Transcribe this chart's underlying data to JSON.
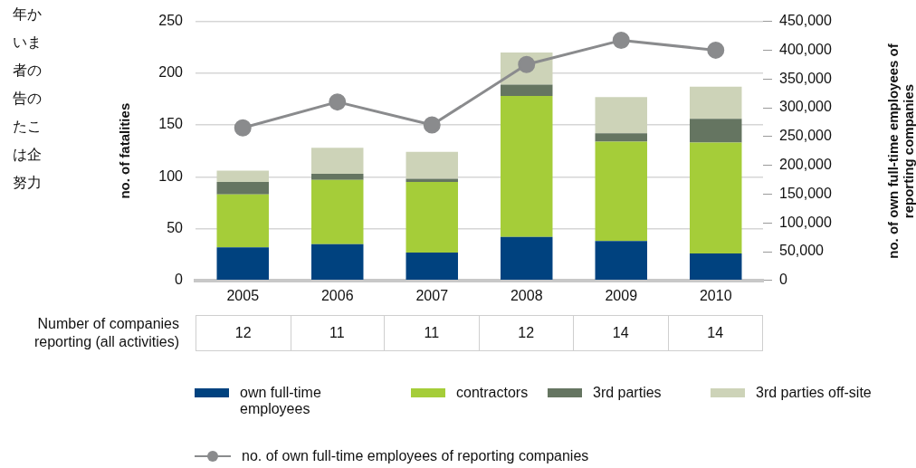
{
  "chart_data": {
    "type": "bar",
    "stacked": true,
    "categories": [
      "2005",
      "2006",
      "2007",
      "2008",
      "2009",
      "2010"
    ],
    "ylabel": "no. of fatalities",
    "y2label": "no. of own full-time employees of reporting companies",
    "ylim": [
      0,
      250
    ],
    "yticks": [
      0,
      50,
      100,
      150,
      200,
      250
    ],
    "y2lim": [
      0,
      450000
    ],
    "y2ticks": [
      {
        "value": 0,
        "label": "0"
      },
      {
        "value": 50000,
        "label": "50,000"
      },
      {
        "value": 100000,
        "label": "100,000"
      },
      {
        "value": 150000,
        "label": "150,000"
      },
      {
        "value": 200000,
        "label": "200,000"
      },
      {
        "value": 250000,
        "label": "250,000"
      },
      {
        "value": 300000,
        "label": "300,000"
      },
      {
        "value": 350000,
        "label": "350,000"
      },
      {
        "value": 400000,
        "label": "400,000"
      },
      {
        "value": 450000,
        "label": "450,000"
      }
    ],
    "grid": "y",
    "legend": "bottom",
    "series": [
      {
        "name": "own full-time employees",
        "color": "#00427f",
        "values": [
          32,
          35,
          27,
          42,
          38,
          26
        ]
      },
      {
        "name": "contractors",
        "color": "#a5cd39",
        "values": [
          51,
          62,
          68,
          136,
          96,
          107
        ]
      },
      {
        "name": "3rd parties",
        "color": "#657561",
        "values": [
          12,
          6,
          3,
          11,
          8,
          23
        ]
      },
      {
        "name": "3rd parties off-site",
        "color": "#cdd3b8",
        "values": [
          11,
          25,
          26,
          31,
          35,
          31
        ]
      },
      {
        "name": "no. of own full-time employees of reporting companies",
        "type": "line",
        "axis": "y2",
        "color": "#8a8b8d",
        "marker": "circle",
        "line_style": "solid",
        "values": [
          265000,
          310000,
          270000,
          375000,
          417000,
          400000
        ]
      }
    ],
    "annotations": [
      "Number of companies reporting (all activities)",
      "12",
      "11",
      "11",
      "12",
      "14",
      "14",
      "年か",
      "いま",
      "者の",
      "告の",
      "たこ",
      "は企",
      "努力"
    ]
  }
}
